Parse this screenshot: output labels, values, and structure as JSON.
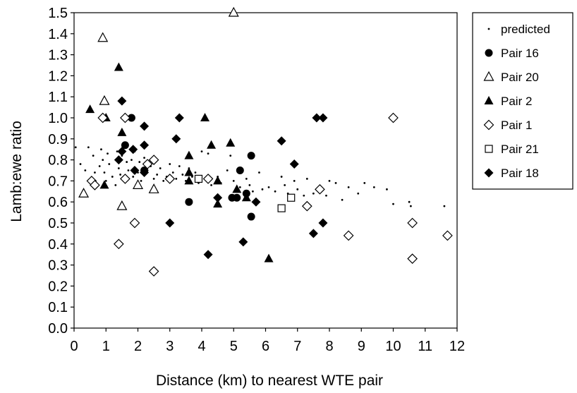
{
  "chart_data": {
    "type": "scatter",
    "xlabel": "Distance (km) to nearest WTE pair",
    "ylabel": "Lamb:ewe ratio",
    "xlim": [
      0,
      12
    ],
    "ylim": [
      0,
      1.5
    ],
    "x_ticks": [
      "0",
      "1",
      "2",
      "3",
      "4",
      "5",
      "6",
      "7",
      "8",
      "9",
      "10",
      "11",
      "12"
    ],
    "y_ticks": [
      "0.0",
      "0.1",
      "0.2",
      "0.3",
      "0.4",
      "0.5",
      "0.6",
      "0.7",
      "0.8",
      "0.9",
      "1.0",
      "1.1",
      "1.2",
      "1.3",
      "1.4",
      "1.5"
    ],
    "grid": false,
    "legend_position": "top-right, outside plot",
    "series": [
      {
        "name": "predicted",
        "marker": "small-dot",
        "points": [
          [
            0.05,
            0.86
          ],
          [
            0.2,
            0.78
          ],
          [
            0.35,
            0.75
          ],
          [
            0.45,
            0.86
          ],
          [
            0.6,
            0.82
          ],
          [
            0.65,
            0.74
          ],
          [
            0.7,
            0.67
          ],
          [
            0.8,
            0.77
          ],
          [
            0.85,
            0.85
          ],
          [
            0.9,
            0.8
          ],
          [
            0.95,
            0.74
          ],
          [
            1.0,
            0.7
          ],
          [
            1.05,
            0.83
          ],
          [
            1.1,
            0.78
          ],
          [
            1.2,
            0.72
          ],
          [
            1.3,
            0.68
          ],
          [
            1.35,
            0.84
          ],
          [
            1.4,
            0.76
          ],
          [
            1.45,
            0.73
          ],
          [
            1.5,
            0.82
          ],
          [
            1.55,
            0.72
          ],
          [
            1.6,
            0.87
          ],
          [
            1.65,
            0.79
          ],
          [
            1.7,
            0.75
          ],
          [
            1.8,
            0.8
          ],
          [
            1.85,
            0.72
          ],
          [
            1.9,
            0.84
          ],
          [
            2.0,
            0.74
          ],
          [
            2.05,
            0.79
          ],
          [
            2.1,
            0.7
          ],
          [
            2.2,
            0.81
          ],
          [
            2.3,
            0.75
          ],
          [
            2.4,
            0.77
          ],
          [
            2.5,
            0.71
          ],
          [
            2.6,
            0.73
          ],
          [
            2.7,
            0.76
          ],
          [
            2.8,
            0.7
          ],
          [
            2.9,
            0.72
          ],
          [
            3.0,
            0.78
          ],
          [
            3.1,
            0.74
          ],
          [
            3.2,
            0.71
          ],
          [
            3.3,
            0.77
          ],
          [
            3.4,
            0.73
          ],
          [
            3.5,
            0.7
          ],
          [
            3.6,
            0.76
          ],
          [
            3.7,
            0.72
          ],
          [
            3.8,
            0.74
          ],
          [
            3.9,
            0.69
          ],
          [
            4.0,
            0.84
          ],
          [
            4.1,
            0.71
          ],
          [
            4.2,
            0.83
          ],
          [
            4.3,
            0.68
          ],
          [
            4.5,
            0.72
          ],
          [
            4.6,
            0.69
          ],
          [
            4.8,
            0.75
          ],
          [
            4.9,
            0.82
          ],
          [
            5.0,
            0.7
          ],
          [
            5.2,
            0.67
          ],
          [
            5.4,
            0.71
          ],
          [
            5.5,
            0.68
          ],
          [
            5.6,
            0.65
          ],
          [
            5.8,
            0.74
          ],
          [
            5.9,
            0.66
          ],
          [
            6.1,
            0.67
          ],
          [
            6.3,
            0.65
          ],
          [
            6.5,
            0.72
          ],
          [
            6.6,
            0.68
          ],
          [
            6.7,
            0.64
          ],
          [
            6.9,
            0.7
          ],
          [
            7.0,
            0.66
          ],
          [
            7.2,
            0.63
          ],
          [
            7.3,
            0.71
          ],
          [
            7.5,
            0.64
          ],
          [
            7.7,
            0.66
          ],
          [
            7.9,
            0.63
          ],
          [
            8.0,
            0.7
          ],
          [
            8.2,
            0.69
          ],
          [
            8.4,
            0.61
          ],
          [
            8.6,
            0.67
          ],
          [
            8.9,
            0.64
          ],
          [
            9.1,
            0.69
          ],
          [
            9.4,
            0.67
          ],
          [
            9.8,
            0.66
          ],
          [
            10.0,
            0.59
          ],
          [
            10.5,
            0.6
          ],
          [
            10.55,
            0.58
          ],
          [
            11.6,
            0.58
          ]
        ]
      },
      {
        "name": "Pair 16",
        "marker": "filled-circle",
        "points": [
          [
            1.6,
            0.87
          ],
          [
            1.8,
            1.0
          ],
          [
            2.2,
            0.75
          ],
          [
            3.6,
            0.6
          ],
          [
            4.95,
            0.62
          ],
          [
            5.1,
            0.62
          ],
          [
            5.2,
            0.75
          ],
          [
            5.4,
            0.64
          ],
          [
            5.55,
            0.82
          ],
          [
            5.55,
            0.53
          ]
        ]
      },
      {
        "name": "Pair 20",
        "marker": "open-triangle",
        "points": [
          [
            0.3,
            0.64
          ],
          [
            0.9,
            1.38
          ],
          [
            0.95,
            1.08
          ],
          [
            1.5,
            0.58
          ],
          [
            2.0,
            0.68
          ],
          [
            2.5,
            0.66
          ],
          [
            5.0,
            1.5
          ]
        ]
      },
      {
        "name": "Pair 2",
        "marker": "filled-triangle",
        "points": [
          [
            0.5,
            1.04
          ],
          [
            0.95,
            0.68
          ],
          [
            1.0,
            1.0
          ],
          [
            1.4,
            1.24
          ],
          [
            1.5,
            0.93
          ],
          [
            3.6,
            0.82
          ],
          [
            3.6,
            0.74
          ],
          [
            3.6,
            0.7
          ],
          [
            4.1,
            1.0
          ],
          [
            4.3,
            0.87
          ],
          [
            4.5,
            0.7
          ],
          [
            4.5,
            0.59
          ],
          [
            4.9,
            0.88
          ],
          [
            5.1,
            0.66
          ],
          [
            5.4,
            0.62
          ],
          [
            6.1,
            0.33
          ]
        ]
      },
      {
        "name": "Pair 1",
        "marker": "open-diamond",
        "points": [
          [
            0.55,
            0.7
          ],
          [
            0.65,
            0.68
          ],
          [
            0.9,
            1.0
          ],
          [
            1.4,
            0.4
          ],
          [
            1.6,
            0.71
          ],
          [
            1.6,
            1.0
          ],
          [
            1.9,
            0.5
          ],
          [
            2.3,
            0.78
          ],
          [
            2.5,
            0.8
          ],
          [
            2.5,
            0.27
          ],
          [
            3.0,
            0.71
          ],
          [
            4.2,
            0.71
          ],
          [
            7.3,
            0.58
          ],
          [
            7.7,
            0.66
          ],
          [
            8.6,
            0.44
          ],
          [
            10.0,
            1.0
          ],
          [
            10.6,
            0.5
          ],
          [
            10.6,
            0.33
          ],
          [
            11.7,
            0.44
          ]
        ]
      },
      {
        "name": "Pair 21",
        "marker": "open-square",
        "points": [
          [
            3.9,
            0.71
          ],
          [
            6.5,
            0.57
          ],
          [
            6.8,
            0.62
          ]
        ]
      },
      {
        "name": "Pair 18",
        "marker": "filled-diamond",
        "points": [
          [
            1.4,
            0.8
          ],
          [
            1.5,
            1.08
          ],
          [
            1.5,
            0.84
          ],
          [
            1.85,
            0.85
          ],
          [
            1.9,
            0.75
          ],
          [
            2.2,
            0.96
          ],
          [
            2.2,
            0.87
          ],
          [
            2.2,
            0.74
          ],
          [
            3.0,
            0.5
          ],
          [
            3.2,
            0.9
          ],
          [
            3.3,
            1.0
          ],
          [
            4.2,
            0.35
          ],
          [
            4.5,
            0.62
          ],
          [
            5.3,
            0.41
          ],
          [
            5.7,
            0.6
          ],
          [
            6.5,
            0.89
          ],
          [
            6.9,
            0.78
          ],
          [
            7.5,
            0.45
          ],
          [
            7.6,
            1.0
          ],
          [
            7.8,
            1.0
          ],
          [
            7.8,
            0.5
          ]
        ]
      }
    ]
  }
}
